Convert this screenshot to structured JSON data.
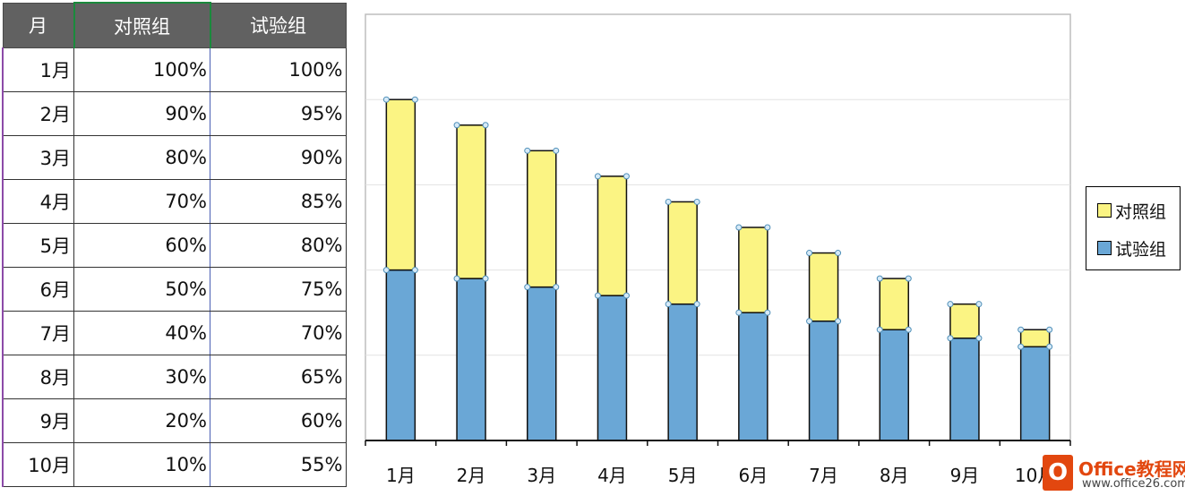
{
  "table": {
    "headers": [
      "月",
      "对照组",
      "试验组"
    ],
    "rows": [
      [
        "1月",
        "100%",
        "100%"
      ],
      [
        "2月",
        "90%",
        "95%"
      ],
      [
        "3月",
        "80%",
        "90%"
      ],
      [
        "4月",
        "70%",
        "85%"
      ],
      [
        "5月",
        "60%",
        "80%"
      ],
      [
        "6月",
        "50%",
        "75%"
      ],
      [
        "7月",
        "40%",
        "70%"
      ],
      [
        "8月",
        "30%",
        "65%"
      ],
      [
        "9月",
        "20%",
        "60%"
      ],
      [
        "10月",
        "10%",
        "55%"
      ]
    ]
  },
  "chart_data": {
    "type": "bar",
    "stacked": true,
    "categories": [
      "1月",
      "2月",
      "3月",
      "4月",
      "5月",
      "6月",
      "7月",
      "8月",
      "9月",
      "10月"
    ],
    "series": [
      {
        "name": "试验组",
        "values": [
          100,
          95,
          90,
          85,
          80,
          75,
          70,
          65,
          60,
          55
        ],
        "color": "#6aa7d6"
      },
      {
        "name": "对照组",
        "values": [
          100,
          90,
          80,
          70,
          60,
          50,
          40,
          30,
          20,
          10
        ],
        "color": "#fbf483"
      }
    ],
    "ylim": [
      0,
      250
    ],
    "grid": true,
    "legend": "right",
    "title": "",
    "xlabel": "",
    "ylabel": ""
  },
  "watermark": {
    "icon_letter": "O",
    "brand": "Office教程网",
    "url": "www.office26.com"
  }
}
